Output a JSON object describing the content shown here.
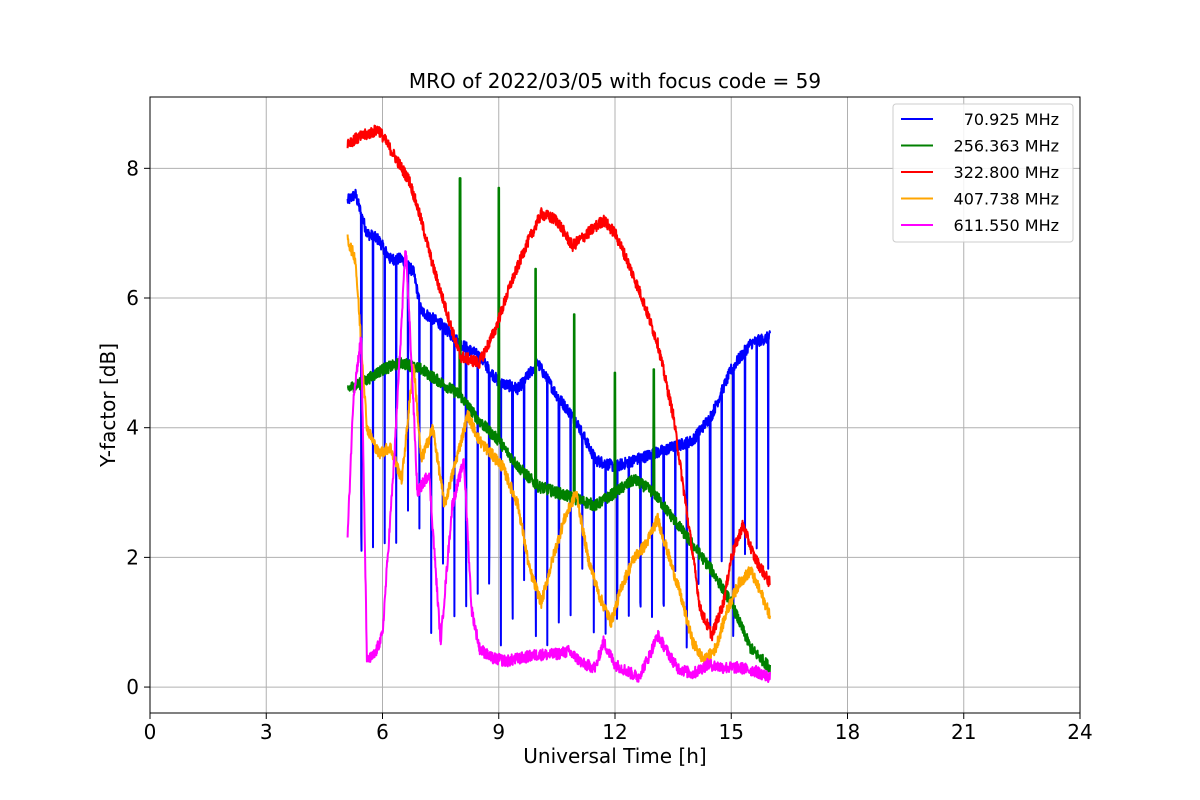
{
  "chart_data": {
    "type": "line",
    "title": "MRO of 2022/03/05 with focus code = 59",
    "xlabel": "Universal Time [h]",
    "ylabel": "Y-factor [dB]",
    "xlim": [
      0,
      24
    ],
    "ylim": [
      -0.4,
      9.1
    ],
    "x_ticks": [
      0,
      3,
      6,
      9,
      12,
      15,
      18,
      21,
      24
    ],
    "y_ticks": [
      0,
      2,
      4,
      6,
      8
    ],
    "grid": true,
    "legend_position": "top-right",
    "series": [
      {
        "name": "70.925 MHz",
        "color": "#0000ff",
        "x": [
          5.1,
          5.3,
          5.6,
          5.9,
          6.2,
          6.5,
          6.8,
          7.0,
          7.5,
          8.0,
          8.5,
          9.0,
          9.5,
          10.0,
          10.5,
          11.0,
          11.5,
          12.0,
          12.5,
          13.0,
          13.5,
          14.0,
          14.5,
          15.0,
          15.5,
          16.0
        ],
        "values": [
          7.5,
          7.6,
          7.0,
          6.9,
          6.6,
          6.6,
          6.4,
          5.8,
          5.6,
          5.3,
          5.1,
          4.7,
          4.6,
          5.0,
          4.5,
          4.1,
          3.5,
          3.4,
          3.5,
          3.6,
          3.7,
          3.8,
          4.2,
          4.9,
          5.3,
          5.4
        ],
        "dip_min": 0.6
      },
      {
        "name": "256.363 MHz",
        "color": "#008000",
        "x": [
          5.1,
          5.5,
          6.0,
          6.5,
          7.0,
          7.5,
          8.0,
          8.5,
          9.0,
          9.5,
          10.0,
          10.5,
          11.0,
          11.5,
          12.0,
          12.5,
          13.0,
          13.5,
          14.0,
          14.5,
          15.0,
          15.5,
          16.0
        ],
        "values": [
          4.6,
          4.7,
          4.9,
          5.0,
          4.9,
          4.7,
          4.5,
          4.1,
          3.8,
          3.4,
          3.1,
          3.0,
          2.9,
          2.8,
          3.0,
          3.2,
          3.0,
          2.6,
          2.2,
          1.8,
          1.3,
          0.6,
          0.3
        ],
        "spikes": [
          [
            8.0,
            7.85
          ],
          [
            9.0,
            7.7
          ],
          [
            9.95,
            6.45
          ],
          [
            10.95,
            5.75
          ],
          [
            12.0,
            4.85
          ],
          [
            13.0,
            4.9
          ]
        ]
      },
      {
        "name": "322.800 MHz",
        "color": "#ff0000",
        "x": [
          5.1,
          5.5,
          5.9,
          6.3,
          6.7,
          7.0,
          7.3,
          7.7,
          8.0,
          8.5,
          8.9,
          9.3,
          9.7,
          10.1,
          10.5,
          10.9,
          11.3,
          11.7,
          12.0,
          12.3,
          12.7,
          13.1,
          13.5,
          13.9,
          14.2,
          14.5,
          14.8,
          15.0,
          15.3,
          15.6,
          16.0
        ],
        "values": [
          8.4,
          8.5,
          8.6,
          8.2,
          7.8,
          7.2,
          6.5,
          5.7,
          5.1,
          5.0,
          5.5,
          6.2,
          6.8,
          7.3,
          7.2,
          6.8,
          7.0,
          7.2,
          7.0,
          6.6,
          6.0,
          5.3,
          4.2,
          2.5,
          1.2,
          0.8,
          1.3,
          2.0,
          2.5,
          2.0,
          1.6
        ]
      },
      {
        "name": "407.738 MHz",
        "color": "#ffa500",
        "x": [
          5.1,
          5.3,
          5.6,
          5.9,
          6.2,
          6.5,
          6.8,
          7.0,
          7.3,
          7.6,
          7.9,
          8.2,
          8.5,
          8.8,
          9.1,
          9.5,
          9.8,
          10.1,
          10.4,
          10.7,
          11.0,
          11.3,
          11.6,
          11.9,
          12.2,
          12.5,
          12.8,
          13.1,
          13.4,
          13.7,
          14.0,
          14.3,
          14.6,
          14.9,
          15.2,
          15.5,
          15.8,
          16.0
        ],
        "values": [
          6.9,
          6.6,
          4.0,
          3.6,
          3.7,
          3.2,
          5.0,
          3.5,
          4.0,
          2.8,
          3.5,
          4.2,
          3.8,
          3.6,
          3.4,
          2.8,
          1.8,
          1.3,
          2.0,
          2.6,
          3.0,
          2.0,
          1.4,
          1.0,
          1.6,
          2.0,
          2.2,
          2.6,
          2.0,
          1.4,
          0.7,
          0.4,
          0.6,
          1.2,
          1.6,
          1.8,
          1.4,
          1.1
        ]
      },
      {
        "name": "611.550 MHz",
        "color": "#ff00ff",
        "x": [
          5.1,
          5.25,
          5.45,
          5.6,
          5.8,
          6.0,
          6.3,
          6.6,
          6.75,
          6.9,
          7.2,
          7.5,
          7.8,
          8.1,
          8.3,
          8.5,
          8.8,
          9.2,
          9.6,
          10.0,
          10.4,
          10.8,
          11.2,
          11.5,
          11.7,
          12.0,
          12.3,
          12.6,
          12.9,
          13.1,
          13.3,
          13.6,
          14.0,
          14.4,
          14.8,
          15.2,
          15.6,
          16.0
        ],
        "values": [
          2.3,
          4.5,
          5.4,
          0.4,
          0.5,
          0.8,
          3.5,
          6.8,
          5.0,
          3.0,
          3.3,
          0.7,
          2.8,
          3.5,
          1.2,
          0.6,
          0.45,
          0.4,
          0.45,
          0.5,
          0.5,
          0.55,
          0.35,
          0.3,
          0.7,
          0.35,
          0.25,
          0.15,
          0.5,
          0.8,
          0.6,
          0.3,
          0.2,
          0.35,
          0.3,
          0.3,
          0.25,
          0.15
        ]
      }
    ]
  }
}
